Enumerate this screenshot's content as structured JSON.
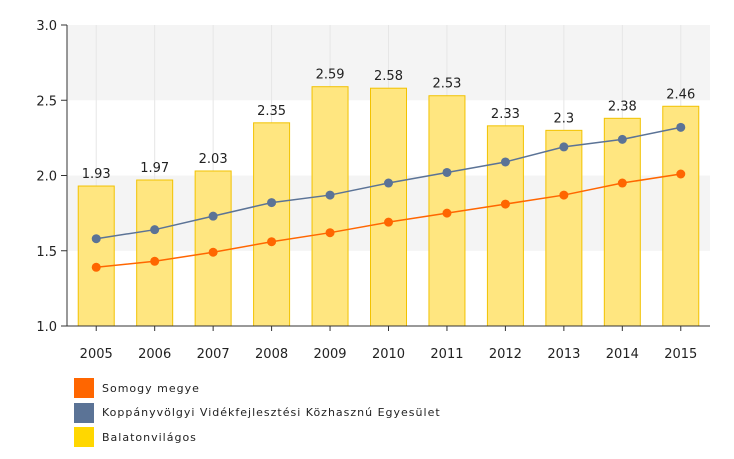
{
  "chart_data": {
    "type": "bar+line",
    "categories": [
      "2005",
      "2006",
      "2007",
      "2008",
      "2009",
      "2010",
      "2011",
      "2012",
      "2013",
      "2014",
      "2015"
    ],
    "ylim": [
      1.0,
      3.0
    ],
    "yticks": [
      "1.0",
      "1.5",
      "2.0",
      "2.5",
      "3.0"
    ],
    "grid": "horizontal bands",
    "legend_position": "bottom-left",
    "series": [
      {
        "name": "Somogy megye",
        "type": "line",
        "color": "#ff6600",
        "values": [
          1.39,
          1.43,
          1.49,
          1.56,
          1.62,
          1.69,
          1.75,
          1.81,
          1.87,
          1.95,
          2.01
        ]
      },
      {
        "name": "Koppányvölgyi Vidékfejlesztési Közhasznú Egyesület",
        "type": "line",
        "color": "#5b7396",
        "values": [
          1.58,
          1.64,
          1.73,
          1.82,
          1.87,
          1.95,
          2.02,
          2.09,
          2.19,
          2.24,
          2.32
        ]
      },
      {
        "name": "Balatonvilágos",
        "type": "bar",
        "color": "#ffd700",
        "values": [
          1.93,
          1.97,
          2.03,
          2.35,
          2.59,
          2.58,
          2.53,
          2.33,
          2.3,
          2.38,
          2.46
        ],
        "labels": [
          "1.93",
          "1.97",
          "2.03",
          "2.35",
          "2.59",
          "2.58",
          "2.53",
          "2.33",
          "2.3",
          "2.38",
          "2.46"
        ]
      }
    ]
  }
}
